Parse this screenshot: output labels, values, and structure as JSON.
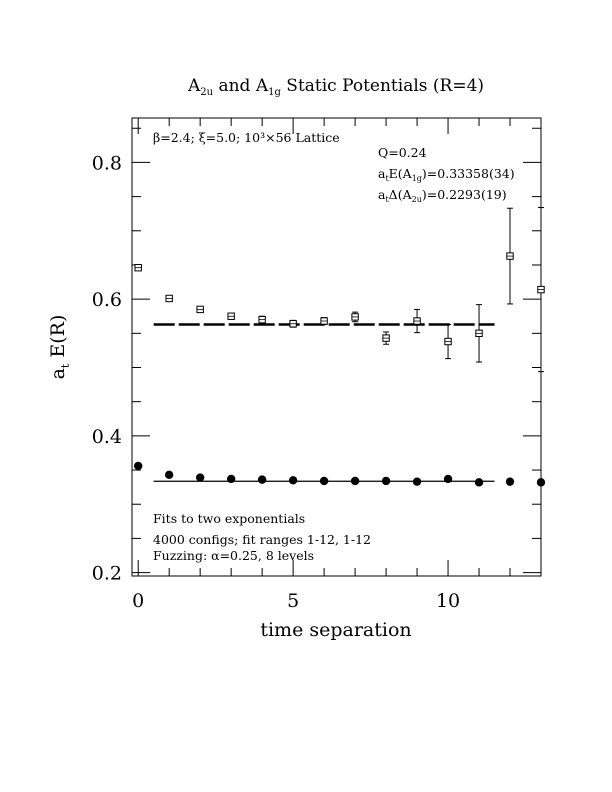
{
  "chart_data": {
    "type": "scatter",
    "title": {
      "prefix": "A",
      "sub1": "2u",
      "mid": " and A",
      "sub2": "1g",
      "suffix": " Static Potentials (R=4)"
    },
    "xlabel": "time separation",
    "ylabel": {
      "main": "a",
      "sub": "t",
      "rest": " E(R)"
    },
    "xlim": [
      -0.2,
      13
    ],
    "ylim": [
      0.195,
      0.865
    ],
    "xticks": [
      {
        "v": 0,
        "label": "0"
      },
      {
        "v": 5,
        "label": "5"
      },
      {
        "v": 10,
        "label": "10"
      }
    ],
    "yticks": [
      {
        "v": 0.2,
        "label": "0.2"
      },
      {
        "v": 0.4,
        "label": "0.4"
      },
      {
        "v": 0.6,
        "label": "0.6"
      },
      {
        "v": 0.8,
        "label": "0.8"
      }
    ],
    "annotations": {
      "lattice": "β=2.4; ξ=5.0; 10³×56 Lattice",
      "q": "Q=0.24",
      "e_a1g": {
        "pre": "a",
        "s1": "t",
        "mid": "E(A",
        "s2": "1g",
        "post": ")=0.33358(34)"
      },
      "d_a2u": {
        "pre": "a",
        "s1": "t",
        "mid": "Δ(A",
        "s2": "2u",
        "post": ")=0.2293(19)"
      },
      "fits": "Fits to two exponentials",
      "configs": "4000 configs; fit ranges 1-12, 1-12",
      "fuzzing": "Fuzzing: α=0.25, 8 levels"
    },
    "series": [
      {
        "marker": "filled-circle",
        "points": [
          {
            "x": 0,
            "y": 0.356,
            "err": 0.002
          },
          {
            "x": 1,
            "y": 0.343,
            "err": 0.002
          },
          {
            "x": 2,
            "y": 0.339,
            "err": 0.002
          },
          {
            "x": 3,
            "y": 0.337,
            "err": 0.002
          },
          {
            "x": 4,
            "y": 0.336,
            "err": 0.002
          },
          {
            "x": 5,
            "y": 0.335,
            "err": 0.002
          },
          {
            "x": 6,
            "y": 0.334,
            "err": 0.002
          },
          {
            "x": 7,
            "y": 0.334,
            "err": 0.002
          },
          {
            "x": 8,
            "y": 0.334,
            "err": 0.002
          },
          {
            "x": 9,
            "y": 0.333,
            "err": 0.002
          },
          {
            "x": 10,
            "y": 0.337,
            "err": 0.002
          },
          {
            "x": 11,
            "y": 0.332,
            "err": 0.002
          },
          {
            "x": 12,
            "y": 0.333,
            "err": 0.002
          },
          {
            "x": 13,
            "y": 0.332,
            "err": 0.002
          }
        ],
        "fit": {
          "x0": 0.5,
          "x1": 11.5,
          "y": 0.3336,
          "style": "solid"
        }
      },
      {
        "marker": "open-square",
        "points": [
          {
            "x": 0,
            "y": 0.646,
            "err": 0.003
          },
          {
            "x": 1,
            "y": 0.601,
            "err": 0.003
          },
          {
            "x": 2,
            "y": 0.585,
            "err": 0.003
          },
          {
            "x": 3,
            "y": 0.575,
            "err": 0.004
          },
          {
            "x": 4,
            "y": 0.57,
            "err": 0.005
          },
          {
            "x": 5,
            "y": 0.564,
            "err": 0.005
          },
          {
            "x": 6,
            "y": 0.568,
            "err": 0.005
          },
          {
            "x": 7,
            "y": 0.574,
            "err": 0.007
          },
          {
            "x": 8,
            "y": 0.543,
            "err": 0.009
          },
          {
            "x": 9,
            "y": 0.568,
            "err": 0.017
          },
          {
            "x": 10,
            "y": 0.538,
            "err": 0.025
          },
          {
            "x": 11,
            "y": 0.55,
            "err": 0.042
          },
          {
            "x": 12,
            "y": 0.663,
            "err": 0.07
          },
          {
            "x": 13,
            "y": 0.614,
            "err": 0.12
          }
        ],
        "fit": {
          "x0": 0.5,
          "x1": 11.5,
          "y": 0.5629,
          "style": "dashed"
        }
      }
    ]
  }
}
